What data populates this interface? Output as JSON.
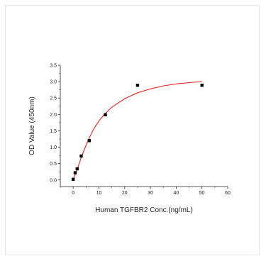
{
  "chart_data": {
    "type": "scatter",
    "xlabel": "Human TGFBR2 Conc.(ng/mL)",
    "ylabel": "OD Value (450nm)",
    "xlim": [
      -5,
      60
    ],
    "ylim": [
      -0.2,
      3.5
    ],
    "xticks": [
      0,
      10,
      20,
      30,
      40,
      50,
      60
    ],
    "yticks": [
      0.0,
      0.5,
      1.0,
      1.5,
      2.0,
      2.5,
      3.0,
      3.5
    ],
    "x_tick_labels": [
      "0",
      "10",
      "20",
      "30",
      "40",
      "50",
      "60"
    ],
    "y_tick_labels": [
      "0.0",
      "0.5",
      "1.0",
      "1.5",
      "2.0",
      "2.5",
      "3.0",
      "3.5"
    ],
    "points": {
      "x": [
        0,
        0.78,
        1.56,
        3.13,
        6.25,
        12.5,
        25,
        50
      ],
      "y": [
        0.02,
        0.22,
        0.34,
        0.73,
        1.2,
        1.99,
        2.89,
        2.89
      ]
    },
    "fit_curve": {
      "x": [
        0,
        1,
        2,
        3,
        4,
        5,
        6,
        8,
        10,
        12,
        15,
        20,
        25,
        30,
        35,
        40,
        45,
        50
      ],
      "y": [
        0.02,
        0.2,
        0.42,
        0.66,
        0.86,
        1.06,
        1.24,
        1.56,
        1.8,
        1.99,
        2.22,
        2.48,
        2.66,
        2.78,
        2.87,
        2.93,
        2.97,
        3.0
      ]
    },
    "colors": {
      "points": "#000000",
      "fit": "#e8231f",
      "axis": "#222222",
      "frame": "#e6e6e6"
    },
    "grid": false,
    "legend": "none"
  }
}
